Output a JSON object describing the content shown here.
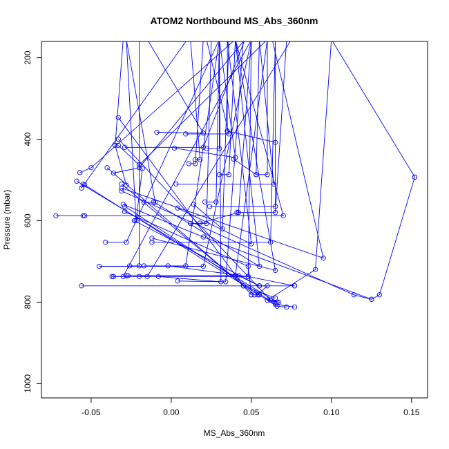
{
  "chart_data": {
    "type": "line",
    "title": "ATOM2 Northbound MS_Abs_360nm",
    "xlabel": "MS_Abs_360nm",
    "ylabel": "Pressure (mbar)",
    "xlim": [
      -0.081,
      0.16
    ],
    "ylim": [
      1035,
      160
    ],
    "y_inverted": true,
    "grid": false,
    "xticks": [
      -0.05,
      0.0,
      0.05,
      0.1,
      0.15
    ],
    "xtick_labels": [
      "-0.05",
      "0.00",
      "0.05",
      "0.10",
      "0.15"
    ],
    "yticks": [
      200,
      400,
      600,
      800,
      1000
    ],
    "ytick_labels": [
      "200",
      "400",
      "600",
      "800",
      "1000"
    ],
    "series_color": "#0000ff",
    "series": [
      {
        "x": [
          0.152,
          0.13,
          0.125,
          0.02,
          -0.03
        ],
        "y": [
          493,
          782,
          793,
          640,
          560
        ]
      },
      {
        "x": [
          0.152,
          0.1
        ],
        "y": [
          493,
          155
        ]
      },
      {
        "x": [
          -0.072,
          -0.055
        ],
        "y": [
          588,
          588
        ]
      },
      {
        "x": [
          -0.057,
          -0.05,
          0.04
        ],
        "y": [
          482,
          470,
          155
        ]
      },
      {
        "x": [
          -0.055,
          -0.056,
          0.01
        ],
        "y": [
          510,
          520,
          155
        ]
      },
      {
        "x": [
          -0.059,
          0.066,
          0.06,
          0.09,
          0.1,
          0.15
        ],
        "y": [
          503,
          800,
          795,
          720,
          155,
          155
        ]
      },
      {
        "x": [
          -0.056,
          0.06,
          0.054
        ],
        "y": [
          760,
          760,
          782
        ]
      },
      {
        "x": [
          -0.054,
          0.066,
          0.072
        ],
        "y": [
          512,
          810,
          812
        ]
      },
      {
        "x": [
          -0.054,
          0.07,
          0.04
        ],
        "y": [
          588,
          588,
          155
        ]
      },
      {
        "x": [
          -0.045,
          0.02,
          0.05
        ],
        "y": [
          712,
          712,
          155
        ]
      },
      {
        "x": [
          -0.037,
          0.048,
          0.077
        ],
        "y": [
          737,
          737,
          760
        ]
      },
      {
        "x": [
          -0.036,
          -0.03,
          0.05
        ],
        "y": [
          737,
          737,
          155
        ]
      },
      {
        "x": [
          -0.04,
          0.045,
          0.05
        ],
        "y": [
          470,
          760,
          782
        ]
      },
      {
        "x": [
          -0.041,
          -0.028,
          0.03
        ],
        "y": [
          653,
          653,
          155
        ]
      },
      {
        "x": [
          -0.036,
          -0.02,
          0.046
        ],
        "y": [
          483,
          470,
          155
        ]
      },
      {
        "x": [
          -0.033,
          0.062,
          0.067
        ],
        "y": [
          400,
          795,
          800
        ]
      },
      {
        "x": [
          -0.033,
          -0.02,
          0.06
        ],
        "y": [
          415,
          463,
          155
        ]
      },
      {
        "x": [
          -0.033,
          0.045,
          0.065
        ],
        "y": [
          347,
          760,
          790
        ]
      },
      {
        "x": [
          -0.031,
          0.052,
          0.055
        ],
        "y": [
          510,
          782,
          782
        ]
      },
      {
        "x": [
          -0.031,
          0.095,
          0.063
        ],
        "y": [
          520,
          692,
          155
        ]
      },
      {
        "x": [
          -0.031,
          0.114,
          0.125
        ],
        "y": [
          527,
          782,
          793
        ]
      },
      {
        "x": [
          -0.029,
          0.065,
          0.077
        ],
        "y": [
          565,
          805,
          812
        ]
      },
      {
        "x": [
          -0.029,
          0.048,
          0.05
        ],
        "y": [
          578,
          712,
          782
        ]
      },
      {
        "x": [
          -0.028,
          0.042,
          0.055
        ],
        "y": [
          735,
          735,
          760
        ]
      },
      {
        "x": [
          -0.029,
          0.02,
          0.046
        ],
        "y": [
          420,
          420,
          155
        ]
      },
      {
        "x": [
          -0.028,
          -0.035,
          -0.03
        ],
        "y": [
          513,
          415,
          155
        ]
      },
      {
        "x": [
          -0.027,
          0.04,
          0.06
        ],
        "y": [
          735,
          735,
          155
        ]
      },
      {
        "x": [
          -0.026,
          -0.02,
          -0.02
        ],
        "y": [
          711,
          711,
          155
        ]
      },
      {
        "x": [
          -0.023,
          0.055,
          0.077
        ],
        "y": [
          600,
          760,
          760
        ]
      },
      {
        "x": [
          -0.02,
          -0.015,
          0.075
        ],
        "y": [
          737,
          737,
          155
        ]
      },
      {
        "x": [
          -0.018,
          -0.022,
          -0.028
        ],
        "y": [
          472,
          600,
          155
        ]
      },
      {
        "x": [
          -0.017,
          0.009,
          0.03
        ],
        "y": [
          711,
          711,
          155
        ]
      },
      {
        "x": [
          -0.017,
          -0.01,
          -0.028
        ],
        "y": [
          555,
          555,
          155
        ]
      },
      {
        "x": [
          -0.012,
          0.062,
          0.065
        ],
        "y": [
          653,
          653,
          155
        ]
      },
      {
        "x": [
          -0.012,
          0.065,
          0.04
        ],
        "y": [
          643,
          722,
          155
        ]
      },
      {
        "x": [
          -0.011,
          0.055,
          0.04
        ],
        "y": [
          554,
          712,
          155
        ]
      },
      {
        "x": [
          -0.009,
          0.02,
          -0.015
        ],
        "y": [
          383,
          385,
          155
        ]
      },
      {
        "x": [
          -0.008,
          0.031,
          0.03
        ],
        "y": [
          737,
          750,
          155
        ]
      },
      {
        "x": [
          -0.002,
          0.048,
          0.05
        ],
        "y": [
          711,
          737,
          155
        ]
      },
      {
        "x": [
          0.002,
          0.04,
          0.03
        ],
        "y": [
          422,
          445,
          155
        ]
      },
      {
        "x": [
          0.003,
          0.064,
          0.055
        ],
        "y": [
          510,
          510,
          155
        ]
      },
      {
        "x": [
          0.004,
          0.034,
          0.045
        ],
        "y": [
          748,
          750,
          155
        ]
      },
      {
        "x": [
          0.004,
          0.05,
          0.035
        ],
        "y": [
          569,
          657,
          155
        ]
      },
      {
        "x": [
          0.009,
          0.036,
          0.022
        ],
        "y": [
          387,
          387,
          155
        ]
      },
      {
        "x": [
          0.011,
          0.015,
          0.02
        ],
        "y": [
          460,
          460,
          155
        ]
      },
      {
        "x": [
          0.012,
          0.022,
          0.025
        ],
        "y": [
          607,
          607,
          155
        ]
      },
      {
        "x": [
          0.014,
          0.032,
          0.036
        ],
        "y": [
          560,
          620,
          155
        ]
      },
      {
        "x": [
          0.015,
          0.018,
          0.012
        ],
        "y": [
          450,
          450,
          155
        ]
      },
      {
        "x": [
          0.018,
          0.042,
          0.05
        ],
        "y": [
          606,
          580,
          155
        ]
      },
      {
        "x": [
          0.021,
          0.028,
          0.03
        ],
        "y": [
          554,
          554,
          155
        ]
      },
      {
        "x": [
          0.022,
          0.03,
          0.03
        ],
        "y": [
          423,
          423,
          155
        ]
      },
      {
        "x": [
          0.024,
          0.065,
          0.065
        ],
        "y": [
          565,
          565,
          155
        ]
      },
      {
        "x": [
          0.03,
          0.036,
          0.04
        ],
        "y": [
          487,
          487,
          155
        ]
      },
      {
        "x": [
          0.039,
          0.053,
          0.055
        ],
        "y": [
          449,
          487,
          155
        ]
      },
      {
        "x": [
          0.041,
          0.065,
          0.072
        ],
        "y": [
          580,
          580,
          155
        ]
      },
      {
        "x": [
          0.065,
          0.035,
          0.035
        ],
        "y": [
          408,
          380,
          155
        ]
      },
      {
        "x": [
          0.053,
          0.06,
          0.06
        ],
        "y": [
          487,
          487,
          155
        ]
      }
    ]
  }
}
